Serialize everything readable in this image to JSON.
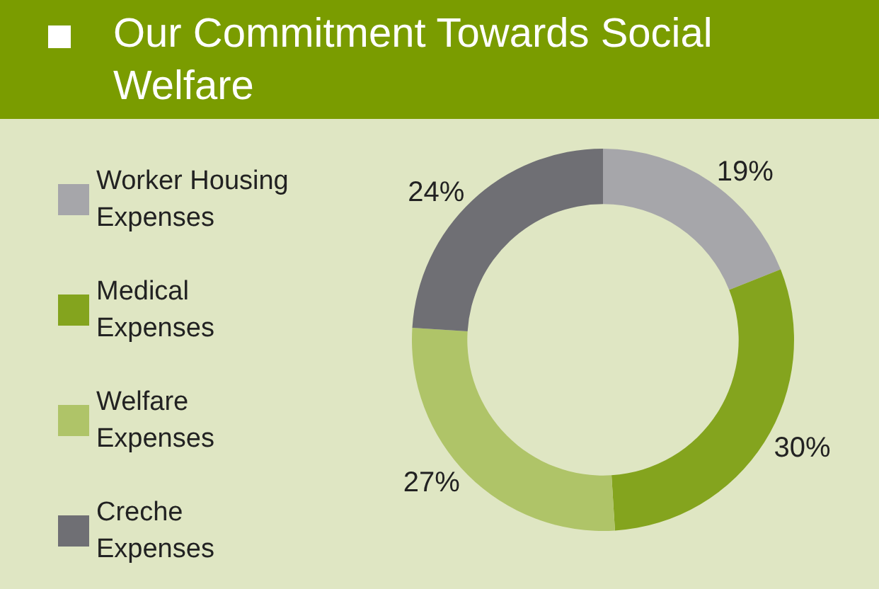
{
  "chart_data": {
    "type": "donut",
    "title": "Our Commitment Towards Social Welfare",
    "categories": [
      "Worker Housing Expenses",
      "Medical Expenses",
      "Welfare Expenses",
      "Creche Expenses"
    ],
    "values": [
      19,
      30,
      27,
      24
    ],
    "colors": [
      "#a6a6aa",
      "#84a41e",
      "#afc468",
      "#6f6f74"
    ],
    "value_labels": [
      "19%",
      "30%",
      "27%",
      "24%"
    ],
    "legend": "left"
  }
}
